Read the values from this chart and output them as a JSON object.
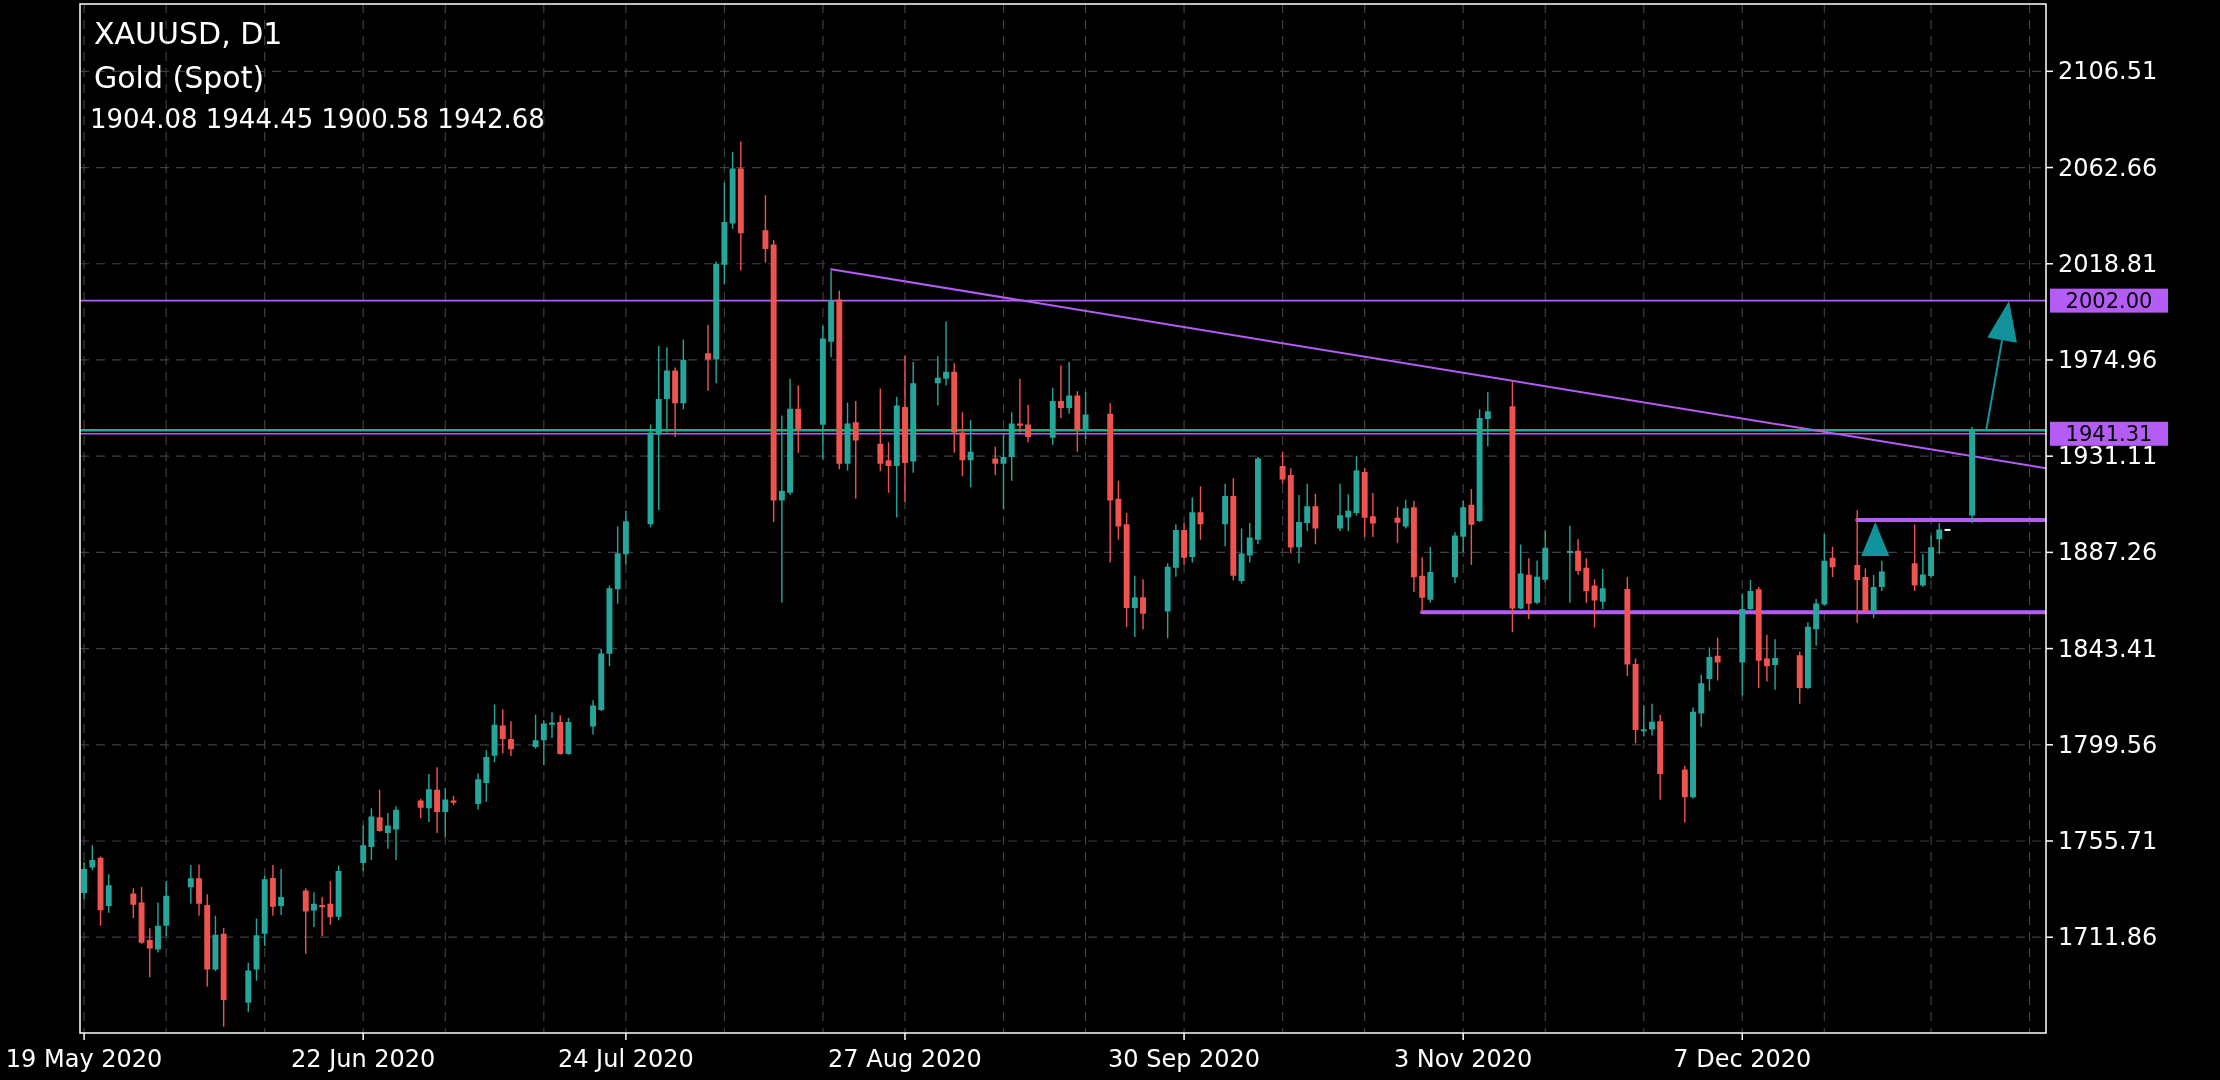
{
  "chart_data": {
    "type": "candlestick",
    "title": "XAUUSD, D1",
    "subtitle": "Gold (Spot)",
    "annotations": [
      "1904.08 1944.45 1900.58 1942.68"
    ],
    "x": [
      "2020-05-19",
      "2020-05-20",
      "2020-05-21",
      "2020-05-22",
      "2020-05-25",
      "2020-05-26",
      "2020-05-27",
      "2020-05-28",
      "2020-05-29",
      "2020-06-01",
      "2020-06-02",
      "2020-06-03",
      "2020-06-04",
      "2020-06-05",
      "2020-06-08",
      "2020-06-09",
      "2020-06-10",
      "2020-06-11",
      "2020-06-12",
      "2020-06-15",
      "2020-06-16",
      "2020-06-17",
      "2020-06-18",
      "2020-06-19",
      "2020-06-22",
      "2020-06-23",
      "2020-06-24",
      "2020-06-25",
      "2020-06-26",
      "2020-06-29",
      "2020-06-30",
      "2020-07-01",
      "2020-07-02",
      "2020-07-03",
      "2020-07-06",
      "2020-07-07",
      "2020-07-08",
      "2020-07-09",
      "2020-07-10",
      "2020-07-13",
      "2020-07-14",
      "2020-07-15",
      "2020-07-16",
      "2020-07-17",
      "2020-07-20",
      "2020-07-21",
      "2020-07-22",
      "2020-07-23",
      "2020-07-24",
      "2020-07-27",
      "2020-07-28",
      "2020-07-29",
      "2020-07-30",
      "2020-07-31",
      "2020-08-03",
      "2020-08-04",
      "2020-08-05",
      "2020-08-06",
      "2020-08-07",
      "2020-08-10",
      "2020-08-11",
      "2020-08-12",
      "2020-08-13",
      "2020-08-14",
      "2020-08-17",
      "2020-08-18",
      "2020-08-19",
      "2020-08-20",
      "2020-08-21",
      "2020-08-24",
      "2020-08-25",
      "2020-08-26",
      "2020-08-27",
      "2020-08-28",
      "2020-08-31",
      "2020-09-01",
      "2020-09-02",
      "2020-09-03",
      "2020-09-04",
      "2020-09-07",
      "2020-09-08",
      "2020-09-09",
      "2020-09-10",
      "2020-09-11",
      "2020-09-14",
      "2020-09-15",
      "2020-09-16",
      "2020-09-17",
      "2020-09-18",
      "2020-09-21",
      "2020-09-22",
      "2020-09-23",
      "2020-09-24",
      "2020-09-25",
      "2020-09-28",
      "2020-09-29",
      "2020-09-30",
      "2020-10-01",
      "2020-10-02",
      "2020-10-05",
      "2020-10-06",
      "2020-10-07",
      "2020-10-08",
      "2020-10-09",
      "2020-10-12",
      "2020-10-13",
      "2020-10-14",
      "2020-10-15",
      "2020-10-16",
      "2020-10-19",
      "2020-10-20",
      "2020-10-21",
      "2020-10-22",
      "2020-10-23",
      "2020-10-26",
      "2020-10-27",
      "2020-10-28",
      "2020-10-29",
      "2020-10-30",
      "2020-11-02",
      "2020-11-03",
      "2020-11-04",
      "2020-11-05",
      "2020-11-06",
      "2020-11-09",
      "2020-11-10",
      "2020-11-11",
      "2020-11-12",
      "2020-11-13",
      "2020-11-16",
      "2020-11-17",
      "2020-11-18",
      "2020-11-19",
      "2020-11-20",
      "2020-11-23",
      "2020-11-24",
      "2020-11-25",
      "2020-11-26",
      "2020-11-27",
      "2020-11-30",
      "2020-12-01",
      "2020-12-02",
      "2020-12-03",
      "2020-12-04",
      "2020-12-07",
      "2020-12-08",
      "2020-12-09",
      "2020-12-10",
      "2020-12-11",
      "2020-12-14",
      "2020-12-15",
      "2020-12-16",
      "2020-12-17",
      "2020-12-18",
      "2020-12-21",
      "2020-12-22",
      "2020-12-23",
      "2020-12-24",
      "2020-12-28",
      "2020-12-29",
      "2020-12-30",
      "2020-12-31",
      "2021-01-01",
      "2021-01-04"
    ],
    "ohlc": [
      [
        1732,
        1746,
        1729,
        1743
      ],
      [
        1743.6,
        1753.8,
        1742.4,
        1747.1
      ],
      [
        1748.1,
        1748.7,
        1717.1,
        1724.2
      ],
      [
        1726.1,
        1740.6,
        1723.0,
        1735.5
      ],
      [
        1731.8,
        1734.2,
        1720.6,
        1726.7
      ],
      [
        1727.7,
        1734.8,
        1708.9,
        1709.3
      ],
      [
        1710.6,
        1715.9,
        1693.6,
        1706.7
      ],
      [
        1706.3,
        1727.7,
        1704.9,
        1717.1
      ],
      [
        1717.1,
        1737.5,
        1712.4,
        1730.8
      ],
      [
        1734.6,
        1744.8,
        1727.1,
        1738.7
      ],
      [
        1738.7,
        1745.0,
        1721.6,
        1727.1
      ],
      [
        1726.5,
        1731.4,
        1689.4,
        1697.1
      ],
      [
        1697.1,
        1721.6,
        1696.5,
        1713.0
      ],
      [
        1713.4,
        1716.1,
        1671.0,
        1683.2
      ],
      [
        1682.0,
        1700.2,
        1677.7,
        1696.7
      ],
      [
        1697.1,
        1720.4,
        1692.0,
        1712.8
      ],
      [
        1713.4,
        1739.9,
        1707.9,
        1738.3
      ],
      [
        1738.9,
        1744.8,
        1721.6,
        1725.7
      ],
      [
        1726.1,
        1743.0,
        1722.0,
        1730.2
      ],
      [
        1733.2,
        1734.2,
        1704.3,
        1723.6
      ],
      [
        1724.0,
        1732.4,
        1716.5,
        1727.1
      ],
      [
        1726.5,
        1730.2,
        1712.4,
        1725.5
      ],
      [
        1727.1,
        1737.5,
        1717.5,
        1721.0
      ],
      [
        1721.2,
        1744.4,
        1719.6,
        1742.0
      ],
      [
        1745.7,
        1762.8,
        1742.0,
        1753.8
      ],
      [
        1753.0,
        1770.6,
        1747.1,
        1766.9
      ],
      [
        1766.5,
        1779.1,
        1759.9,
        1760.3
      ],
      [
        1759.3,
        1768.5,
        1752.2,
        1762.8
      ],
      [
        1761.0,
        1771.6,
        1747.1,
        1769.9
      ],
      [
        1774.2,
        1775.0,
        1766.1,
        1770.9
      ],
      [
        1770.6,
        1786.3,
        1764.4,
        1779.3
      ],
      [
        1779.1,
        1789.3,
        1759.3,
        1768.9
      ],
      [
        1768.9,
        1779.7,
        1757.7,
        1774.6
      ],
      [
        1774.2,
        1776.3,
        1772.0,
        1773.2
      ],
      [
        1772.6,
        1786.5,
        1770.1,
        1783.8
      ],
      [
        1782.2,
        1797.1,
        1773.6,
        1794.0
      ],
      [
        1794.6,
        1817.9,
        1791.6,
        1808.7
      ],
      [
        1808.3,
        1815.8,
        1795.6,
        1802.2
      ],
      [
        1802.2,
        1810.3,
        1794.4,
        1797.5
      ],
      [
        1798.5,
        1813.4,
        1797.7,
        1801.6
      ],
      [
        1801.6,
        1810.7,
        1790.3,
        1809.3
      ],
      [
        1808.7,
        1814.4,
        1802.6,
        1809.7
      ],
      [
        1809.9,
        1813.0,
        1795.0,
        1795.4
      ],
      [
        1795.4,
        1811.8,
        1795.0,
        1809.9
      ],
      [
        1807.9,
        1819.9,
        1804.2,
        1817.5
      ],
      [
        1815.4,
        1843.2,
        1815.0,
        1841.2
      ],
      [
        1841.0,
        1872.2,
        1835.4,
        1870.9
      ],
      [
        1870.5,
        1899.1,
        1863.8,
        1886.9
      ],
      [
        1886.4,
        1906.2,
        1881.7,
        1901.5
      ],
      [
        1900.1,
        1945.6,
        1898.7,
        1941.9
      ],
      [
        1940.9,
        1981.3,
        1906.6,
        1957.2
      ],
      [
        1957.2,
        1980.7,
        1941.9,
        1970.1
      ],
      [
        1970.1,
        1971.5,
        1939.9,
        1955.2
      ],
      [
        1955.2,
        1984.3,
        1952.5,
        1975.0
      ],
      [
        1978.0,
        1990.9,
        1960.9,
        1975.2
      ],
      [
        1975.2,
        2019.8,
        1964.3,
        2018.8
      ],
      [
        2018.4,
        2055.7,
        2009.6,
        2037.8
      ],
      [
        2037.2,
        2069.8,
        2034.7,
        2062.2
      ],
      [
        2062.2,
        2074.5,
        2015.7,
        2032.7
      ],
      [
        2034.1,
        2050.0,
        2019.4,
        2025.5
      ],
      [
        2027.6,
        2029.6,
        1901.1,
        1910.9
      ],
      [
        1910.9,
        1949.7,
        1864.4,
        1915.4
      ],
      [
        1914.4,
        1966.4,
        1913.4,
        1952.7
      ],
      [
        1952.7,
        1963.3,
        1932.7,
        1942.9
      ],
      [
        1945.4,
        1990.5,
        1929.7,
        1984.7
      ],
      [
        1983.3,
        2015.7,
        1976.2,
        2002.1
      ],
      [
        2002.5,
        2006.6,
        1925.2,
        1927.6
      ],
      [
        1927.6,
        1955.6,
        1924.6,
        1946.0
      ],
      [
        1946.6,
        1956.2,
        1911.7,
        1938.2
      ],
      [
        1936.8,
        1961.9,
        1924.2,
        1927.6
      ],
      [
        1929.3,
        1937.4,
        1914.4,
        1926.6
      ],
      [
        1926.6,
        1958.2,
        1903.2,
        1954.2
      ],
      [
        1953.5,
        1977.0,
        1910.3,
        1928.0
      ],
      [
        1928.7,
        1974.0,
        1923.6,
        1964.4
      ],
      [
        1964.4,
        1976.6,
        1954.2,
        1966.8
      ],
      [
        1966.4,
        1992.5,
        1963.3,
        1969.6
      ],
      [
        1969.6,
        1973.5,
        1932.7,
        1941.9
      ],
      [
        1941.9,
        1951.1,
        1921.9,
        1929.3
      ],
      [
        1929.3,
        1947.6,
        1917.0,
        1933.1
      ],
      [
        1930.1,
        1935.4,
        1922.5,
        1927.6
      ],
      [
        1927.6,
        1941.5,
        1906.8,
        1930.7
      ],
      [
        1930.7,
        1951.1,
        1919.9,
        1946.0
      ],
      [
        1946.0,
        1966.4,
        1941.9,
        1945.0
      ],
      [
        1945.6,
        1954.6,
        1937.4,
        1939.9
      ],
      [
        1939.5,
        1962.3,
        1936.2,
        1956.2
      ],
      [
        1956.2,
        1972.5,
        1948.4,
        1953.1
      ],
      [
        1953.1,
        1974.0,
        1950.5,
        1958.8
      ],
      [
        1958.8,
        1960.7,
        1933.1,
        1942.9
      ],
      [
        1942.9,
        1960.3,
        1938.9,
        1950.1
      ],
      [
        1950.5,
        1955.2,
        1882.7,
        1910.9
      ],
      [
        1911.7,
        1919.9,
        1893.0,
        1899.1
      ],
      [
        1900.1,
        1905.2,
        1853.2,
        1861.9
      ],
      [
        1861.9,
        1876.6,
        1848.7,
        1866.8
      ],
      [
        1866.8,
        1875.0,
        1852.1,
        1859.3
      ],
      [
        1860.3,
        1882.3,
        1848.1,
        1880.7
      ],
      [
        1880.3,
        1900.1,
        1876.2,
        1897.5
      ],
      [
        1897.5,
        1900.5,
        1881.7,
        1884.8
      ],
      [
        1885.2,
        1912.3,
        1882.7,
        1905.6
      ],
      [
        1905.6,
        1917.4,
        1893.0,
        1900.1
      ],
      [
        1900.1,
        1918.5,
        1890.0,
        1912.9
      ],
      [
        1912.9,
        1921.1,
        1874.6,
        1876.6
      ],
      [
        1874.2,
        1898.1,
        1873.0,
        1886.8
      ],
      [
        1885.8,
        1900.7,
        1882.7,
        1894.0
      ],
      [
        1893.0,
        1930.7,
        1891.0,
        1930.1
      ],
      [
        1926.6,
        1933.1,
        1918.5,
        1920.5
      ],
      [
        1922.5,
        1925.6,
        1886.9,
        1889.5
      ],
      [
        1889.6,
        1913.4,
        1882.3,
        1901.1
      ],
      [
        1900.7,
        1918.5,
        1897.0,
        1908.3
      ],
      [
        1908.3,
        1914.0,
        1891.0,
        1898.1
      ],
      [
        1898.1,
        1918.5,
        1897.0,
        1904.2
      ],
      [
        1903.2,
        1913.8,
        1897.0,
        1906.2
      ],
      [
        1905.2,
        1931.3,
        1904.0,
        1924.6
      ],
      [
        1923.9,
        1925.7,
        1894.3,
        1903.0
      ],
      [
        1903.7,
        1914.3,
        1894.3,
        1900.4
      ],
      [
        1903.0,
        1908.1,
        1891.5,
        1900.8
      ],
      [
        1899.0,
        1911.3,
        1898.1,
        1907.4
      ],
      [
        1907.8,
        1910.8,
        1869.2,
        1875.9
      ],
      [
        1876.6,
        1885.0,
        1860.4,
        1866.6
      ],
      [
        1865.7,
        1889.7,
        1864.3,
        1878.3
      ],
      [
        1875.9,
        1896.4,
        1873.2,
        1895.0
      ],
      [
        1894.4,
        1910.8,
        1887.3,
        1907.8
      ],
      [
        1909.0,
        1916.2,
        1881.5,
        1899.9
      ],
      [
        1901.6,
        1952.5,
        1901.1,
        1948.5
      ],
      [
        1948.1,
        1960.4,
        1935.5,
        1951.6
      ],
      [
        1953.9,
        1965.2,
        1850.8,
        1861.7
      ],
      [
        1861.7,
        1890.8,
        1861.3,
        1877.6
      ],
      [
        1877.1,
        1884.6,
        1856.9,
        1863.9
      ],
      [
        1864.3,
        1883.6,
        1863.6,
        1876.2
      ],
      [
        1874.8,
        1897.3,
        1873.6,
        1889.4
      ],
      [
        1887.3,
        1899.4,
        1864.3,
        1887.5
      ],
      [
        1888.0,
        1893.4,
        1877.1,
        1878.8
      ],
      [
        1880.2,
        1884.6,
        1864.3,
        1869.5
      ],
      [
        1872.2,
        1875.0,
        1853.0,
        1865.3
      ],
      [
        1864.8,
        1879.7,
        1861.3,
        1870.9
      ],
      [
        1870.6,
        1876.0,
        1830.9,
        1836.2
      ],
      [
        1836.4,
        1838.9,
        1800.3,
        1806.3
      ],
      [
        1805.8,
        1817.6,
        1803.3,
        1806.5
      ],
      [
        1806.5,
        1818.3,
        1803.8,
        1810.1
      ],
      [
        1810.3,
        1813.3,
        1774.5,
        1786.3
      ],
      [
        1788.3,
        1790.0,
        1764.0,
        1775.7
      ],
      [
        1775.7,
        1816.6,
        1775.0,
        1814.6
      ],
      [
        1813.8,
        1831.6,
        1807.8,
        1827.6
      ],
      [
        1829.6,
        1843.9,
        1824.1,
        1839.6
      ],
      [
        1840.1,
        1848.4,
        1828.9,
        1837.1
      ],
      [
        1837.1,
        1868.5,
        1822.1,
        1861.4
      ],
      [
        1861.4,
        1874.7,
        1860.9,
        1869.7
      ],
      [
        1870.5,
        1871.5,
        1825.4,
        1837.9
      ],
      [
        1838.9,
        1849.7,
        1828.4,
        1835.4
      ],
      [
        1835.9,
        1847.7,
        1824.6,
        1839.1
      ],
      [
        1840.4,
        1842.1,
        1818.3,
        1825.4
      ],
      [
        1825.4,
        1855.4,
        1825.0,
        1853.4
      ],
      [
        1852.2,
        1866.0,
        1844.7,
        1864.0
      ],
      [
        1863.5,
        1895.7,
        1862.9,
        1883.5
      ],
      [
        1884.8,
        1889.8,
        1876.0,
        1880.5
      ],
      [
        1881.5,
        1906.5,
        1855.2,
        1874.7
      ],
      [
        1876.0,
        1880.0,
        1859.5,
        1860.4
      ],
      [
        1860.4,
        1877.0,
        1857.2,
        1871.5
      ],
      [
        1871.5,
        1883.5,
        1869.7,
        1878.5
      ],
      [
        1882.3,
        1900.0,
        1869.7,
        1872.2
      ],
      [
        1872.2,
        1886.5,
        1871.5,
        1877.2
      ],
      [
        1876.5,
        1895.0,
        1875.5,
        1889.6
      ],
      [
        1893.2,
        1900.7,
        1886.5,
        1897.7
      ],
      [
        1897.5,
        1897.5,
        1897.5,
        1897.5
      ],
      [
        1904.08,
        1944.45,
        1900.58,
        1942.68
      ]
    ],
    "colors": [
      "#26a69a",
      "#26a69a",
      "#ef5350",
      "#26a69a",
      "#ef5350",
      "#ef5350",
      "#ef5350",
      "#26a69a",
      "#26a69a",
      "#26a69a",
      "#ef5350",
      "#ef5350",
      "#26a69a",
      "#ef5350",
      "#26a69a",
      "#26a69a",
      "#26a69a",
      "#ef5350",
      "#26a69a",
      "#ef5350",
      "#26a69a",
      "#ef5350",
      "#ef5350",
      "#26a69a",
      "#26a69a",
      "#26a69a",
      "#ef5350",
      "#26a69a",
      "#26a69a",
      "#ef5350",
      "#26a69a",
      "#ef5350",
      "#26a69a",
      "#ef5350",
      "#26a69a",
      "#26a69a",
      "#26a69a",
      "#ef5350",
      "#ef5350",
      "#26a69a",
      "#26a69a",
      "#26a69a",
      "#ef5350",
      "#26a69a",
      "#26a69a",
      "#26a69a",
      "#26a69a",
      "#26a69a",
      "#26a69a",
      "#26a69a",
      "#26a69a",
      "#26a69a",
      "#ef5350",
      "#26a69a",
      "#ef5350",
      "#26a69a",
      "#26a69a",
      "#26a69a",
      "#ef5350",
      "#ef5350",
      "#ef5350",
      "#26a69a",
      "#26a69a",
      "#ef5350",
      "#26a69a",
      "#26a69a",
      "#ef5350",
      "#26a69a",
      "#ef5350",
      "#ef5350",
      "#ef5350",
      "#26a69a",
      "#ef5350",
      "#26a69a",
      "#26a69a",
      "#26a69a",
      "#ef5350",
      "#ef5350",
      "#26a69a",
      "#ef5350",
      "#26a69a",
      "#26a69a",
      "#ef5350",
      "#ef5350",
      "#26a69a",
      "#ef5350",
      "#26a69a",
      "#ef5350",
      "#26a69a",
      "#ef5350",
      "#ef5350",
      "#ef5350",
      "#26a69a",
      "#ef5350",
      "#26a69a",
      "#26a69a",
      "#ef5350",
      "#26a69a",
      "#ef5350",
      "#26a69a",
      "#ef5350",
      "#26a69a",
      "#26a69a",
      "#26a69a",
      "#ef5350",
      "#ef5350",
      "#26a69a",
      "#26a69a",
      "#ef5350",
      "#26a69a",
      "#26a69a",
      "#26a69a",
      "#ef5350",
      "#ef5350",
      "#ef5350",
      "#26a69a",
      "#ef5350",
      "#ef5350",
      "#26a69a",
      "#26a69a",
      "#26a69a",
      "#ef5350",
      "#26a69a",
      "#26a69a",
      "#ef5350",
      "#26a69a",
      "#ef5350",
      "#26a69a",
      "#26a69a",
      "#26a69a",
      "#ef5350",
      "#ef5350",
      "#ef5350",
      "#26a69a",
      "#ef5350",
      "#ef5350",
      "#26a69a",
      "#26a69a",
      "#ef5350",
      "#ef5350",
      "#26a69a",
      "#26a69a",
      "#26a69a",
      "#ef5350",
      "#26a69a",
      "#26a69a",
      "#ef5350",
      "#ef5350",
      "#26a69a",
      "#ef5350",
      "#26a69a",
      "#26a69a",
      "#26a69a",
      "#ef5350",
      "#ef5350",
      "#ef5350",
      "#26a69a",
      "#26a69a",
      "#ef5350",
      "#26a69a",
      "#26a69a",
      "#26a69a",
      "#ffffff",
      "#26a69a"
    ],
    "xlim": [
      "2020-05-18T12:00",
      "2021-01-13"
    ],
    "xticks": [
      {
        "value": "2020-05-19",
        "label": "19 May 2020"
      },
      {
        "value": "2020-05-29",
        "label": null
      },
      {
        "value": "2020-06-10",
        "label": null
      },
      {
        "value": "2020-06-22",
        "label": "22 Jun 2020"
      },
      {
        "value": "2020-07-02",
        "label": null
      },
      {
        "value": "2020-07-14",
        "label": null
      },
      {
        "value": "2020-07-24",
        "label": "24 Jul 2020"
      },
      {
        "value": "2020-08-05",
        "label": null
      },
      {
        "value": "2020-08-17",
        "label": null
      },
      {
        "value": "2020-08-27",
        "label": "27 Aug 2020"
      },
      {
        "value": "2020-09-08",
        "label": null
      },
      {
        "value": "2020-09-18",
        "label": null
      },
      {
        "value": "2020-09-30",
        "label": "30 Sep 2020"
      },
      {
        "value": "2020-10-12",
        "label": null
      },
      {
        "value": "2020-10-22",
        "label": null
      },
      {
        "value": "2020-11-03",
        "label": "3 Nov 2020"
      },
      {
        "value": "2020-11-13",
        "label": null
      },
      {
        "value": "2020-11-25",
        "label": null
      },
      {
        "value": "2020-12-07",
        "label": "7 Dec 2020"
      },
      {
        "value": "2020-12-17",
        "label": null
      },
      {
        "value": "2020-12-30",
        "label": null
      },
      {
        "value": "2021-01-11",
        "label": null
      }
    ],
    "ylim": [
      1668.2,
      2137.2
    ],
    "yticks": [
      1711.86,
      1755.71,
      1799.56,
      1843.41,
      1887.26,
      1931.11,
      1974.96,
      2018.81,
      2062.66,
      2106.51
    ],
    "grid": true,
    "ref_lines": [
      {
        "axis": "y",
        "value": 2002,
        "label": "2002.00",
        "color": "#b45cf6"
      },
      {
        "axis": "y",
        "value": 1943.1,
        "label": null,
        "color": "#ef5350"
      },
      {
        "axis": "y",
        "value": 1942.68,
        "label": null,
        "color": "#26a69a"
      },
      {
        "axis": "y",
        "value": 1941.31,
        "label": "1941.31",
        "color": "#b45cf6"
      }
    ],
    "series": [
      {
        "type": "line",
        "x": [
          "2020-08-18",
          "2021-01-13"
        ],
        "values": [
          2016.3,
          1925.6
        ],
        "color": "#b45cf6"
      },
      {
        "type": "line",
        "x": [
          "2020-10-29",
          "2021-01-13"
        ],
        "values": [
          1860,
          1860
        ],
        "color": "#b45cf6"
      },
      {
        "type": "line",
        "x": [
          "2020-12-21",
          "2021-01-13"
        ],
        "values": [
          1902,
          1902
        ],
        "color": "#b45cf6"
      }
    ]
  }
}
